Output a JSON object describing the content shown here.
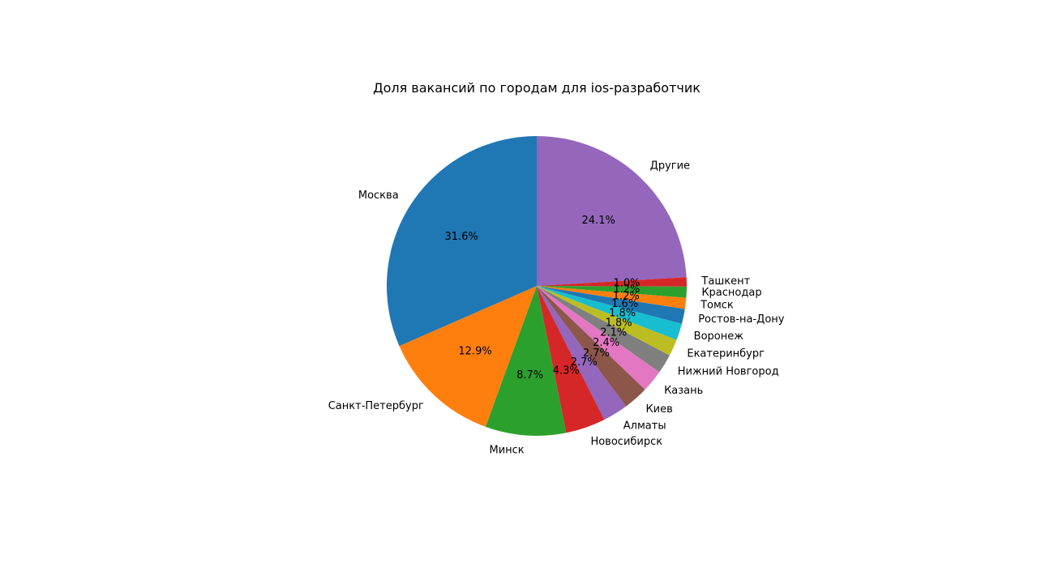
{
  "chart_data": {
    "type": "pie",
    "title": "Доля вакансий по городам для ios-разработчик",
    "slices": [
      {
        "label": "Другие",
        "value": 24.1,
        "pct_label": "24.1%",
        "color": "#9467bd"
      },
      {
        "label": "Ташкент",
        "value": 1.0,
        "pct_label": "1.0%",
        "color": "#d62728"
      },
      {
        "label": "Краснодар",
        "value": 1.2,
        "pct_label": "1.2%",
        "color": "#2ca02c"
      },
      {
        "label": "Томск",
        "value": 1.2,
        "pct_label": "1.2%",
        "color": "#ff7f0e"
      },
      {
        "label": "Ростов-на-Дону",
        "value": 1.6,
        "pct_label": "1.6%",
        "color": "#1f77b4"
      },
      {
        "label": "Воронеж",
        "value": 1.8,
        "pct_label": "1.8%",
        "color": "#17becf"
      },
      {
        "label": "Екатеринбург",
        "value": 1.8,
        "pct_label": "1.8%",
        "color": "#bcbd22"
      },
      {
        "label": "Нижний Новгород",
        "value": 2.1,
        "pct_label": "2.1%",
        "color": "#7f7f7f"
      },
      {
        "label": "Казань",
        "value": 2.4,
        "pct_label": "2.4%",
        "color": "#e377c2"
      },
      {
        "label": "Киев",
        "value": 2.7,
        "pct_label": "2.7%",
        "color": "#8c564b"
      },
      {
        "label": "Алматы",
        "value": 2.7,
        "pct_label": "2.7%",
        "color": "#9467bd"
      },
      {
        "label": "Новосибирск",
        "value": 4.3,
        "pct_label": "4.3%",
        "color": "#d62728"
      },
      {
        "label": "Минск",
        "value": 8.7,
        "pct_label": "8.7%",
        "color": "#2ca02c"
      },
      {
        "label": "Санкт-Петербург",
        "value": 12.9,
        "pct_label": "12.9%",
        "color": "#ff7f0e"
      },
      {
        "label": "Москва",
        "value": 31.6,
        "pct_label": "31.6%",
        "color": "#1f77b4"
      }
    ]
  }
}
